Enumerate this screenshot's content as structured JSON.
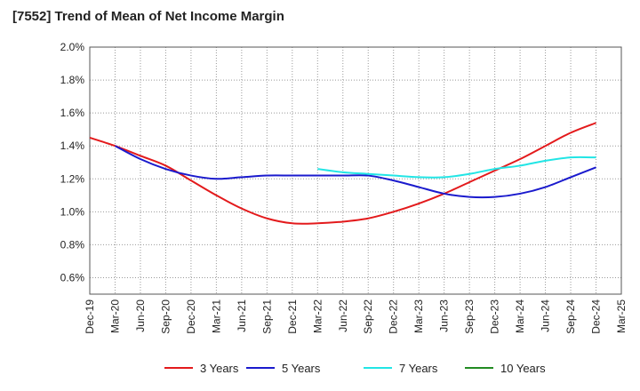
{
  "chart_data": {
    "type": "line",
    "title": "[7552]  Trend of Mean of Net Income Margin",
    "xlabel": "",
    "ylabel": "",
    "ylim": [
      0.5,
      2.0
    ],
    "y_ticks": [
      "0.6%",
      "0.8%",
      "1.0%",
      "1.2%",
      "1.4%",
      "1.6%",
      "1.8%",
      "2.0%"
    ],
    "y_tick_values": [
      0.6,
      0.8,
      1.0,
      1.2,
      1.4,
      1.6,
      1.8,
      2.0
    ],
    "categories": [
      "Dec-19",
      "Mar-20",
      "Jun-20",
      "Sep-20",
      "Dec-20",
      "Mar-21",
      "Jun-21",
      "Sep-21",
      "Dec-21",
      "Mar-22",
      "Jun-22",
      "Sep-22",
      "Dec-22",
      "Mar-23",
      "Jun-23",
      "Sep-23",
      "Dec-23",
      "Mar-24",
      "Jun-24",
      "Sep-24",
      "Dec-24",
      "Mar-25"
    ],
    "grid": true,
    "legend_position": "bottom",
    "series": [
      {
        "name": "3 Years",
        "color": "#e31a1c",
        "values": [
          1.45,
          1.4,
          1.34,
          1.28,
          1.19,
          1.1,
          1.02,
          0.96,
          0.93,
          0.93,
          0.94,
          0.96,
          1.0,
          1.05,
          1.11,
          1.18,
          1.25,
          1.32,
          1.4,
          1.48,
          1.54,
          null
        ]
      },
      {
        "name": "5 Years",
        "color": "#1a1acd",
        "values": [
          null,
          1.4,
          1.32,
          1.26,
          1.22,
          1.2,
          1.21,
          1.22,
          1.22,
          1.22,
          1.22,
          1.22,
          1.19,
          1.15,
          1.11,
          1.09,
          1.09,
          1.11,
          1.15,
          1.21,
          1.27,
          null
        ]
      },
      {
        "name": "7 Years",
        "color": "#22e5e5",
        "values": [
          null,
          null,
          null,
          null,
          null,
          null,
          null,
          null,
          null,
          1.26,
          1.24,
          1.23,
          1.22,
          1.21,
          1.21,
          1.23,
          1.26,
          1.28,
          1.31,
          1.33,
          1.33,
          null
        ]
      },
      {
        "name": "10 Years",
        "color": "#228b22",
        "values": [
          null,
          null,
          null,
          null,
          null,
          null,
          null,
          null,
          null,
          null,
          null,
          null,
          null,
          null,
          null,
          null,
          null,
          null,
          null,
          null,
          null,
          null
        ]
      }
    ]
  }
}
